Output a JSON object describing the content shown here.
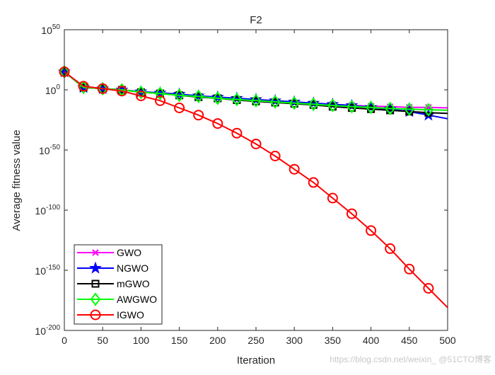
{
  "chart_data": {
    "type": "line",
    "title": "F2",
    "xlabel": "Iteration",
    "ylabel": "Average fitness value",
    "xlim": [
      0,
      500
    ],
    "ylim": [
      1e-200,
      1e+50
    ],
    "yscale": "log",
    "grid": false,
    "legend_position": "bottom-left",
    "xticks": [
      0,
      50,
      100,
      150,
      200,
      250,
      300,
      350,
      400,
      450,
      500
    ],
    "yticks": [
      {
        "base": "10",
        "exp": "50",
        "value": 1e+50
      },
      {
        "base": "10",
        "exp": "0",
        "value": 1
      },
      {
        "base": "10",
        "exp": "-50",
        "value": 1e-50
      },
      {
        "base": "10",
        "exp": "-100",
        "value": 1e-100
      },
      {
        "base": "10",
        "exp": "-150",
        "value": 1e-150
      },
      {
        "base": "10",
        "exp": "-200",
        "value": 1e-200
      }
    ],
    "x": [
      0,
      25,
      50,
      75,
      100,
      125,
      150,
      175,
      200,
      225,
      250,
      275,
      300,
      325,
      350,
      375,
      400,
      425,
      450,
      475,
      500
    ],
    "series": [
      {
        "name": "GWO",
        "color": "#ff00ff",
        "marker": "x",
        "values": [
          1000000000000000.0,
          100.0,
          10.0,
          1.0,
          0.01,
          0.001,
          0.0001,
          3e-06,
          1e-07,
          1e-08,
          1e-09,
          1e-10,
          1e-11,
          3e-12,
          1e-12,
          1e-13,
          3e-14,
          1e-14,
          3e-15,
          3e-15,
          1e-15
        ]
      },
      {
        "name": "NGWO",
        "color": "#0000ff",
        "marker": "star",
        "values": [
          1000000000000000.0,
          100.0,
          10.0,
          1.0,
          0.03,
          0.003,
          0.0003,
          1e-05,
          1e-06,
          1e-07,
          1e-08,
          1e-09,
          1e-10,
          1e-11,
          1e-12,
          1e-13,
          3e-15,
          1e-16,
          1e-18,
          1e-21,
          1e-24
        ]
      },
      {
        "name": "mGWO",
        "color": "#000000",
        "marker": "square",
        "values": [
          1000000000000000.0,
          100.0,
          10.0,
          1.0,
          0.01,
          0.001,
          3e-05,
          1e-06,
          1e-07,
          3e-09,
          3e-10,
          3e-11,
          3e-12,
          3e-13,
          1e-14,
          1e-15,
          1e-16,
          1e-17,
          1e-18,
          1e-19,
          3e-20
        ]
      },
      {
        "name": "AWGWO",
        "color": "#00ff00",
        "marker": "diamond",
        "values": [
          1000000000000000.0,
          100.0,
          10.0,
          1.0,
          0.01,
          0.001,
          3e-05,
          3e-06,
          1e-07,
          1e-08,
          1e-09,
          1e-10,
          1e-11,
          1e-12,
          1e-13,
          1e-14,
          3e-15,
          3e-16,
          1e-16,
          3e-17,
          1e-17
        ]
      },
      {
        "name": "IGWO",
        "color": "#ff0000",
        "marker": "circle",
        "values": [
          1000000000000000.0,
          1000.0,
          10.0,
          0.1,
          1e-05,
          1e-09,
          1e-15,
          1e-21,
          1e-28,
          1e-36,
          1e-45,
          1e-55,
          1e-66,
          1e-77,
          1e-90,
          1e-103,
          1e-117,
          1e-132,
          1e-149,
          1e-165,
          1e-181
        ]
      }
    ]
  },
  "watermark": "https://blog.csdn.net/weixin_ @51CTO博客"
}
